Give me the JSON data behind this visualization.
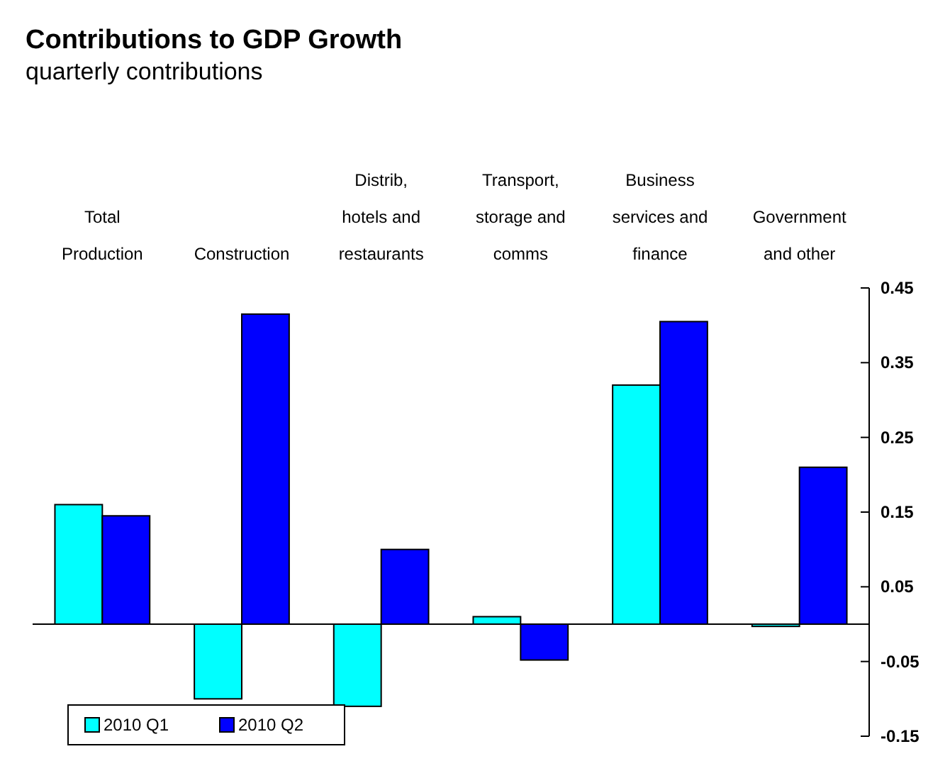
{
  "chart_data": {
    "type": "bar",
    "title": "Contributions to GDP Growth",
    "subtitle": "quarterly contributions",
    "categories": [
      "Total\nProduction",
      "Construction",
      "Distrib,\nhotels and\nrestaurants",
      "Transport,\nstorage and\ncomms",
      "Business\nservices and\nfinance",
      "Government\nand other"
    ],
    "series": [
      {
        "name": "2010 Q1",
        "color": "#00ffff",
        "values": [
          0.16,
          -0.1,
          -0.11,
          0.01,
          0.32,
          -0.003
        ]
      },
      {
        "name": "2010 Q2",
        "color": "#0000ff",
        "values": [
          0.145,
          0.415,
          0.1,
          -0.048,
          0.405,
          0.21
        ]
      }
    ],
    "ylim": [
      -0.15,
      0.45
    ],
    "yticks": [
      -0.15,
      -0.05,
      0.05,
      0.15,
      0.25,
      0.35,
      0.45
    ],
    "grid": false,
    "legend": "bottom left"
  }
}
